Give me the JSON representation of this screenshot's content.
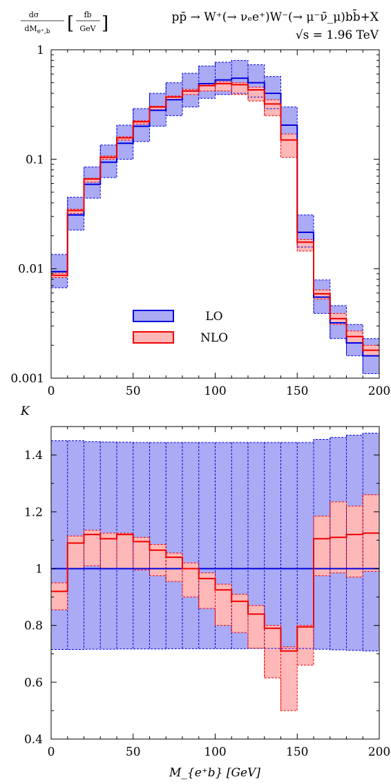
{
  "header": {
    "ylabel_top": "dσ/dM_{e⁺,b} [fb/GeV]",
    "ylabel_frac_num": "dσ",
    "ylabel_frac_den": "dM",
    "ylabel_frac_den_sub": "e⁺,b",
    "ylabel_unit_num": "fb",
    "ylabel_unit_den": "GeV",
    "process": "pp̄ → W⁺(→ νₑe⁺)W⁻(→ μ⁻ν̄_μ)bb̄+X",
    "energy": "√s = 1.96 TeV"
  },
  "colors": {
    "lo_line": "#0000dd",
    "lo_band": "#aaaaf5",
    "nlo_line": "#ee0000",
    "nlo_band": "#ffb8b8"
  },
  "chart_data": [
    {
      "type": "line",
      "title": "",
      "xlabel": "",
      "ylabel": "dσ/dM_{e⁺,b} [fb/GeV]",
      "yscale": "log",
      "xlim": [
        0,
        200
      ],
      "ylim": [
        0.001,
        1
      ],
      "xticks": [
        "0",
        "50",
        "100",
        "150",
        "200"
      ],
      "yticks": [
        "0.001",
        "0.01",
        "0.1",
        "1"
      ],
      "bin_edges": [
        0,
        10,
        20,
        30,
        40,
        50,
        60,
        70,
        80,
        90,
        100,
        110,
        120,
        130,
        140,
        150,
        160,
        170,
        180,
        190,
        200
      ],
      "legend": {
        "placement": "center-left",
        "entries": [
          "LO",
          "NLO"
        ]
      },
      "series": [
        {
          "name": "LO",
          "values": [
            0.0094,
            0.031,
            0.059,
            0.094,
            0.14,
            0.2,
            0.28,
            0.35,
            0.42,
            0.49,
            0.53,
            0.55,
            0.5,
            0.4,
            0.205,
            0.0215,
            0.0055,
            0.0032,
            0.0021,
            0.0016
          ],
          "band_low": [
            0.0067,
            0.0225,
            0.044,
            0.068,
            0.1,
            0.145,
            0.2,
            0.25,
            0.3,
            0.36,
            0.39,
            0.4,
            0.37,
            0.29,
            0.15,
            0.0158,
            0.0039,
            0.0023,
            0.0016,
            0.0011
          ],
          "band_high": [
            0.0135,
            0.045,
            0.085,
            0.135,
            0.205,
            0.29,
            0.4,
            0.5,
            0.61,
            0.71,
            0.77,
            0.8,
            0.73,
            0.57,
            0.3,
            0.031,
            0.0079,
            0.0046,
            0.0031,
            0.0023
          ]
        },
        {
          "name": "NLO",
          "values": [
            0.0087,
            0.034,
            0.066,
            0.104,
            0.157,
            0.22,
            0.3,
            0.37,
            0.42,
            0.47,
            0.49,
            0.48,
            0.43,
            0.32,
            0.15,
            0.0175,
            0.0059,
            0.0035,
            0.0024,
            0.0018
          ],
          "band_low": [
            0.0083,
            0.032,
            0.062,
            0.1,
            0.15,
            0.21,
            0.283,
            0.35,
            0.39,
            0.42,
            0.42,
            0.39,
            0.34,
            0.25,
            0.104,
            0.0145,
            0.0053,
            0.0031,
            0.0021,
            0.0016
          ],
          "band_high": [
            0.0091,
            0.035,
            0.067,
            0.107,
            0.16,
            0.225,
            0.305,
            0.378,
            0.435,
            0.485,
            0.51,
            0.5,
            0.455,
            0.35,
            0.17,
            0.0185,
            0.0064,
            0.0039,
            0.0027,
            0.002
          ]
        }
      ]
    },
    {
      "type": "line",
      "title": "",
      "xlabel": "M_{e⁺b} [GeV]",
      "ylabel": "K",
      "xlim": [
        0,
        200
      ],
      "ylim": [
        0.4,
        1.5
      ],
      "xticks": [
        "0",
        "50",
        "100",
        "150",
        "200"
      ],
      "yticks": [
        "0.4",
        "0.6",
        "0.8",
        "1",
        "1.2",
        "1.4"
      ],
      "bin_edges": [
        0,
        10,
        20,
        30,
        40,
        50,
        60,
        70,
        80,
        90,
        100,
        110,
        120,
        130,
        140,
        150,
        160,
        170,
        180,
        190,
        200
      ],
      "series": [
        {
          "name": "LO",
          "values": [
            1.0,
            1.0,
            1.0,
            1.0,
            1.0,
            1.0,
            1.0,
            1.0,
            1.0,
            1.0,
            1.0,
            1.0,
            1.0,
            1.0,
            1.0,
            1.0,
            1.0,
            1.0,
            1.0,
            1.0
          ],
          "band_low": [
            0.715,
            0.715,
            0.716,
            0.716,
            0.717,
            0.717,
            0.717,
            0.718,
            0.718,
            0.718,
            0.718,
            0.718,
            0.719,
            0.719,
            0.719,
            0.719,
            0.716,
            0.714,
            0.712,
            0.71
          ],
          "band_high": [
            1.45,
            1.45,
            1.447,
            1.446,
            1.445,
            1.444,
            1.444,
            1.444,
            1.444,
            1.444,
            1.444,
            1.444,
            1.444,
            1.444,
            1.444,
            1.444,
            1.455,
            1.462,
            1.47,
            1.477
          ]
        },
        {
          "name": "NLO",
          "values": [
            0.92,
            1.09,
            1.12,
            1.105,
            1.12,
            1.095,
            1.065,
            1.04,
            1.0,
            0.965,
            0.925,
            0.885,
            0.84,
            0.79,
            0.71,
            0.795,
            1.105,
            1.11,
            1.12,
            1.125
          ],
          "band_low": [
            0.855,
            1.0,
            1.01,
            1.0,
            1.0,
            0.995,
            0.975,
            0.955,
            0.9,
            0.86,
            0.8,
            0.775,
            0.72,
            0.615,
            0.5,
            0.66,
            0.975,
            0.985,
            0.97,
            0.99
          ],
          "band_high": [
            0.95,
            1.115,
            1.135,
            1.125,
            1.125,
            1.11,
            1.085,
            1.055,
            1.02,
            0.985,
            0.945,
            0.91,
            0.87,
            0.8,
            0.725,
            0.8,
            1.185,
            1.235,
            1.22,
            1.26
          ]
        }
      ]
    }
  ]
}
